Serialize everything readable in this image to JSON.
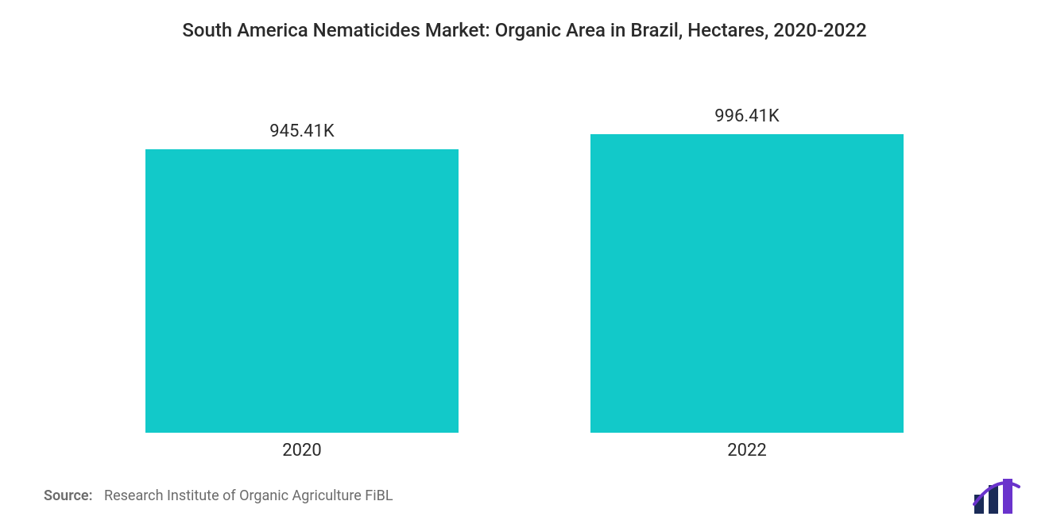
{
  "chart": {
    "type": "bar",
    "title": "South America Nematicides Market: Organic Area in Brazil, Hectares, 2020-2022",
    "title_fontsize": 24,
    "title_color": "#2a2a2a",
    "background_color": "#ffffff",
    "categories": [
      "2020",
      "2022"
    ],
    "values": [
      945.41,
      996.41
    ],
    "value_labels": [
      "945.41K",
      "996.41K"
    ],
    "value_label_fontsize": 22,
    "xlabel_fontsize": 22,
    "bar_colors": [
      "#12c9c9",
      "#12c9c9"
    ],
    "bar_width_pct": 80,
    "ylim": [
      0,
      1100
    ],
    "axes_visible": false,
    "grid": false
  },
  "source": {
    "label": "Source:",
    "text": "Research Institute of Organic Agriculture FiBL",
    "fontsize": 18,
    "color": "#6b6b6b"
  },
  "logo": {
    "name": "mordor-intelligence-logo",
    "bar_color_1": "#1a2b57",
    "bar_color_2": "#1a2b57",
    "bar_color_3": "#6a33cc",
    "accent_color": "#6a33cc"
  }
}
